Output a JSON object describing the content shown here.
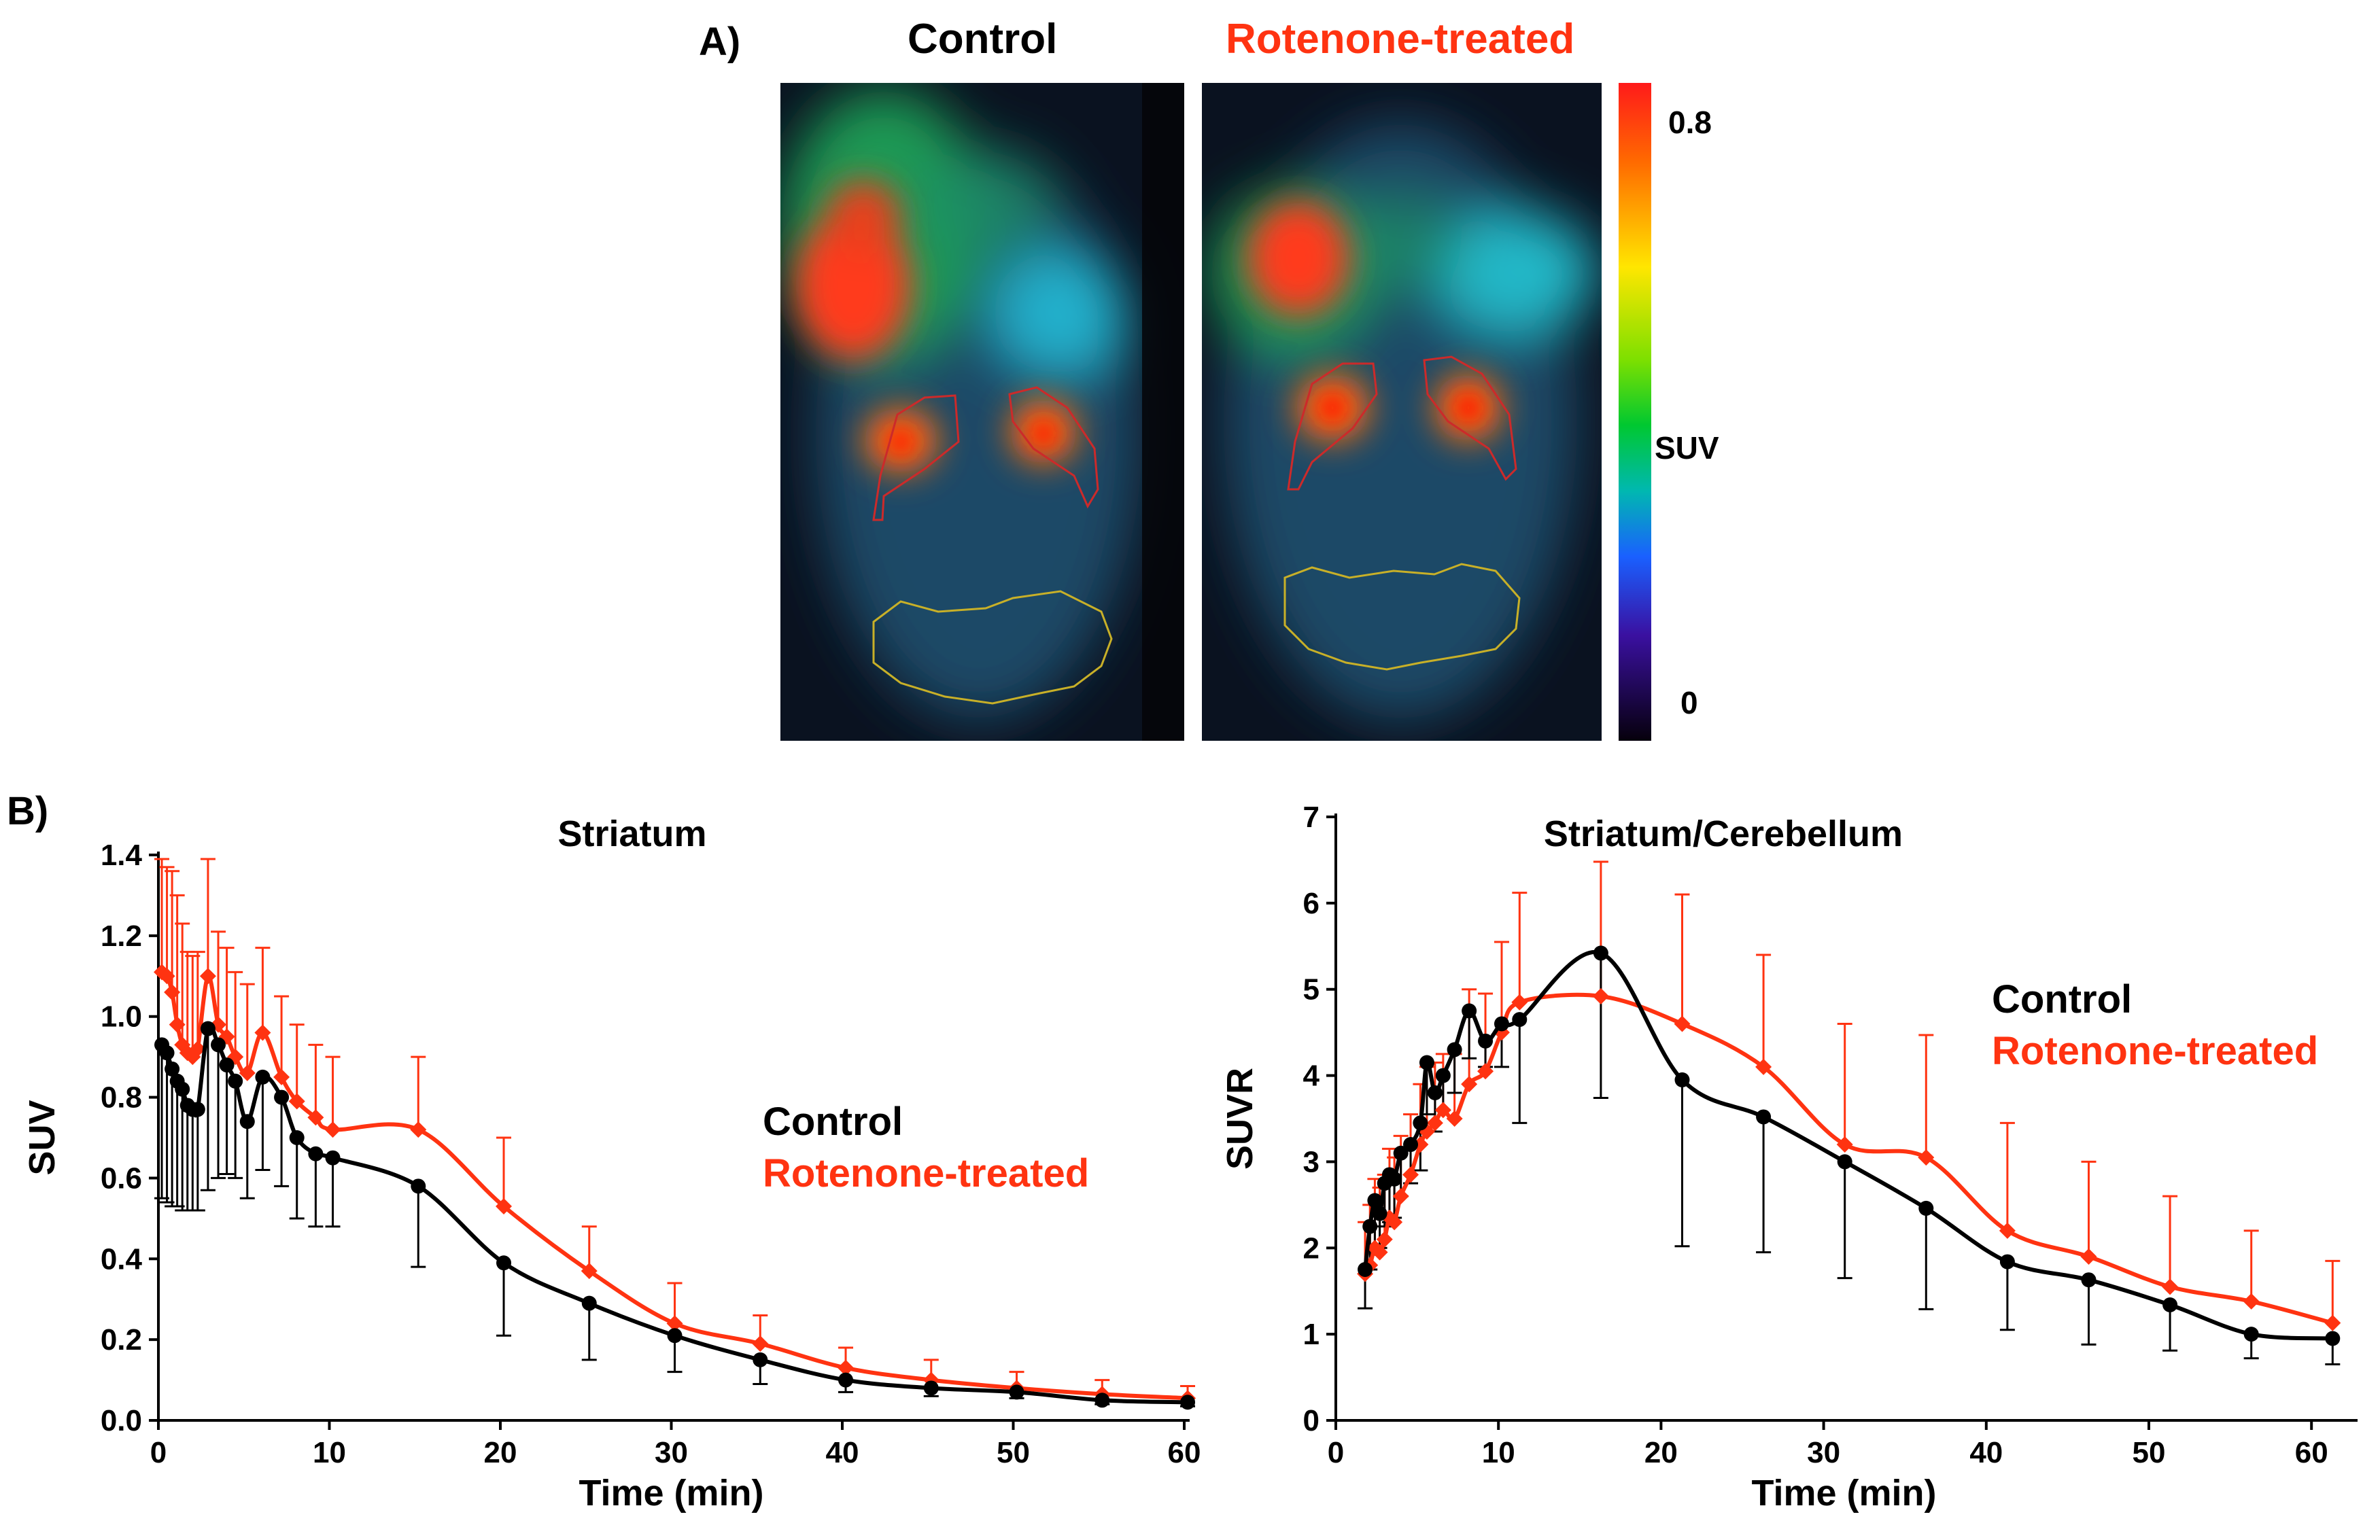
{
  "panel_a": {
    "label": "A)",
    "title_control": "Control",
    "title_treated": "Rotenone-treated",
    "colorbar": {
      "max_label": "0.8",
      "mid_label": "SUV",
      "min_label": "0"
    },
    "colors": {
      "control": "#000000",
      "treated": "#ff3311"
    }
  },
  "panel_b": {
    "label": "B)"
  },
  "chart_data": [
    {
      "type": "line",
      "title": "Striatum",
      "xlabel": "Time (min)",
      "ylabel": "SUV",
      "xlim": [
        0,
        60
      ],
      "ylim": [
        0,
        1.4
      ],
      "xticks": [
        0,
        10,
        20,
        30,
        40,
        50,
        60
      ],
      "yticks": [
        0.0,
        0.2,
        0.4,
        0.6,
        0.8,
        1.0,
        1.2,
        1.4
      ],
      "ytick_labels": [
        "0.0",
        "0.2",
        "0.4",
        "0.6",
        "0.8",
        "1.0",
        "1.2",
        "1.4"
      ],
      "legend": [
        "Control",
        "Rotenone-treated"
      ],
      "series": [
        {
          "name": "Control",
          "color": "#000000",
          "marker": "circle",
          "x": [
            0.2,
            0.5,
            0.8,
            1.1,
            1.4,
            1.7,
            2.0,
            2.3,
            2.9,
            3.5,
            4.0,
            4.5,
            5.2,
            6.1,
            7.2,
            8.1,
            9.2,
            10.2,
            15.2,
            20.2,
            25.2,
            30.2,
            35.2,
            40.2,
            45.2,
            50.2,
            55.2,
            60.2
          ],
          "y": [
            0.93,
            0.91,
            0.87,
            0.84,
            0.82,
            0.78,
            0.77,
            0.77,
            0.97,
            0.93,
            0.88,
            0.84,
            0.74,
            0.85,
            0.8,
            0.7,
            0.66,
            0.65,
            0.58,
            0.39,
            0.29,
            0.21,
            0.15,
            0.1,
            0.08,
            0.07,
            0.05,
            0.045
          ],
          "error_lower": [
            0.38,
            0.37,
            0.34,
            0.31,
            0.3,
            0.26,
            0.25,
            0.25,
            0.4,
            0.33,
            0.27,
            0.24,
            0.19,
            0.23,
            0.22,
            0.2,
            0.18,
            0.17,
            0.2,
            0.18,
            0.14,
            0.09,
            0.06,
            0.03,
            0.02,
            0.015,
            0.01,
            0.01
          ]
        },
        {
          "name": "Rotenone-treated",
          "color": "#ff3311",
          "marker": "diamond",
          "x": [
            0.2,
            0.5,
            0.8,
            1.1,
            1.4,
            1.7,
            2.0,
            2.3,
            2.9,
            3.5,
            4.0,
            4.5,
            5.2,
            6.1,
            7.2,
            8.1,
            9.2,
            10.2,
            15.2,
            20.2,
            25.2,
            30.2,
            35.2,
            40.2,
            45.2,
            50.2,
            55.2,
            60.2
          ],
          "y": [
            1.11,
            1.1,
            1.06,
            0.98,
            0.93,
            0.91,
            0.9,
            0.92,
            1.1,
            0.98,
            0.95,
            0.9,
            0.86,
            0.96,
            0.85,
            0.79,
            0.75,
            0.72,
            0.72,
            0.53,
            0.37,
            0.24,
            0.19,
            0.13,
            0.1,
            0.08,
            0.065,
            0.055
          ],
          "error_upper": [
            0.28,
            0.27,
            0.3,
            0.32,
            0.3,
            0.25,
            0.25,
            0.24,
            0.29,
            0.23,
            0.22,
            0.21,
            0.22,
            0.21,
            0.2,
            0.19,
            0.18,
            0.18,
            0.18,
            0.17,
            0.11,
            0.1,
            0.07,
            0.05,
            0.05,
            0.04,
            0.035,
            0.03
          ]
        }
      ]
    },
    {
      "type": "line",
      "title": "Striatum/Cerebellum",
      "xlabel": "Time (min)",
      "ylabel": "SUVR",
      "xlim": [
        0,
        62.5
      ],
      "ylim": [
        0,
        7
      ],
      "xticks": [
        0,
        10,
        20,
        30,
        40,
        50,
        60
      ],
      "yticks": [
        0,
        1,
        2,
        3,
        4,
        5,
        6,
        7
      ],
      "ytick_labels": [
        "0",
        "1",
        "2",
        "3",
        "4",
        "5",
        "6",
        "7"
      ],
      "legend": [
        "Control",
        "Rotenone-treated"
      ],
      "series": [
        {
          "name": "Control",
          "color": "#000000",
          "marker": "circle",
          "x": [
            1.8,
            2.1,
            2.4,
            2.7,
            3.0,
            3.3,
            3.6,
            4.0,
            4.6,
            5.2,
            5.6,
            6.1,
            6.6,
            7.3,
            8.2,
            9.2,
            10.2,
            11.3,
            16.3,
            21.3,
            26.3,
            31.3,
            36.3,
            41.3,
            46.3,
            51.3,
            56.3,
            61.3
          ],
          "y": [
            1.75,
            2.25,
            2.55,
            2.4,
            2.75,
            2.85,
            2.8,
            3.1,
            3.2,
            3.45,
            4.15,
            3.8,
            4.0,
            4.3,
            4.75,
            4.4,
            4.6,
            4.65,
            5.42,
            3.95,
            3.52,
            3.0,
            2.46,
            1.84,
            1.63,
            1.34,
            1.0,
            0.95
          ],
          "error_lower": [
            0.45,
            0.5,
            0.55,
            0.4,
            0.5,
            0.55,
            0.45,
            0.5,
            0.45,
            0.55,
            0.6,
            0.45,
            0.4,
            0.5,
            0.55,
            0.3,
            0.5,
            1.2,
            1.68,
            1.93,
            1.57,
            1.35,
            1.17,
            0.79,
            0.75,
            0.53,
            0.28,
            0.3
          ]
        },
        {
          "name": "Rotenone-treated",
          "color": "#ff3311",
          "marker": "diamond",
          "x": [
            1.8,
            2.1,
            2.4,
            2.7,
            3.0,
            3.3,
            3.6,
            4.0,
            4.6,
            5.2,
            5.6,
            6.1,
            6.6,
            7.3,
            8.2,
            9.2,
            10.2,
            11.3,
            16.3,
            21.3,
            26.3,
            31.3,
            36.3,
            41.3,
            46.3,
            51.3,
            56.3,
            61.3
          ],
          "y": [
            1.7,
            1.8,
            2.0,
            1.95,
            2.1,
            2.35,
            2.3,
            2.6,
            2.85,
            3.2,
            3.35,
            3.45,
            3.6,
            3.5,
            3.9,
            4.05,
            4.5,
            4.85,
            4.92,
            4.6,
            4.1,
            3.2,
            3.05,
            2.2,
            1.9,
            1.55,
            1.38,
            1.13
          ],
          "error_upper": [
            0.6,
            0.7,
            0.8,
            0.75,
            0.75,
            0.8,
            0.75,
            0.7,
            0.7,
            0.7,
            0.75,
            0.7,
            0.65,
            0.75,
            1.1,
            0.9,
            1.05,
            1.27,
            1.56,
            1.5,
            1.3,
            1.4,
            1.42,
            1.25,
            1.1,
            1.05,
            0.82,
            0.72
          ]
        }
      ]
    }
  ]
}
